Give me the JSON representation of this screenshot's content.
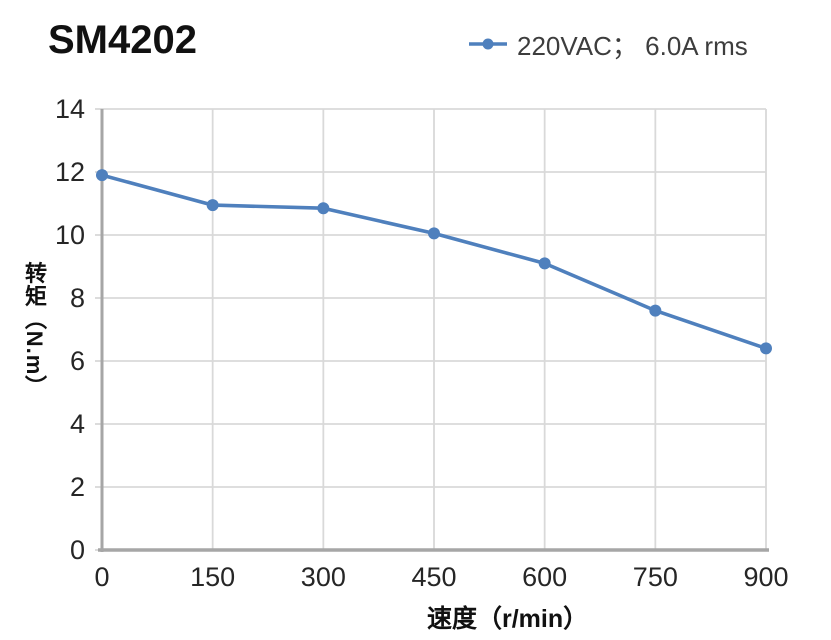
{
  "title": "SM4202",
  "legend": {
    "label": "220VAC； 6.0A rms"
  },
  "chart_data": {
    "type": "line",
    "title": "SM4202",
    "x": [
      0,
      150,
      300,
      450,
      600,
      750,
      900
    ],
    "series": [
      {
        "name": "220VAC； 6.0A rms",
        "values": [
          11.9,
          10.95,
          10.85,
          10.05,
          9.1,
          7.6,
          6.4
        ]
      }
    ],
    "xlabel": "速度（r/min）",
    "ylabel": "转矩（N.m）",
    "xlim": [
      0,
      900
    ],
    "ylim": [
      0,
      14
    ],
    "x_ticks": [
      0,
      150,
      300,
      450,
      600,
      750,
      900
    ],
    "y_ticks": [
      0,
      2,
      4,
      6,
      8,
      10,
      12,
      14
    ],
    "grid": true,
    "legend_position": "top-right",
    "colors": {
      "series": "#4f80bd",
      "gridline": "#d9d9d9",
      "axis": "#a6a6a6",
      "tick_text": "#262626"
    }
  }
}
